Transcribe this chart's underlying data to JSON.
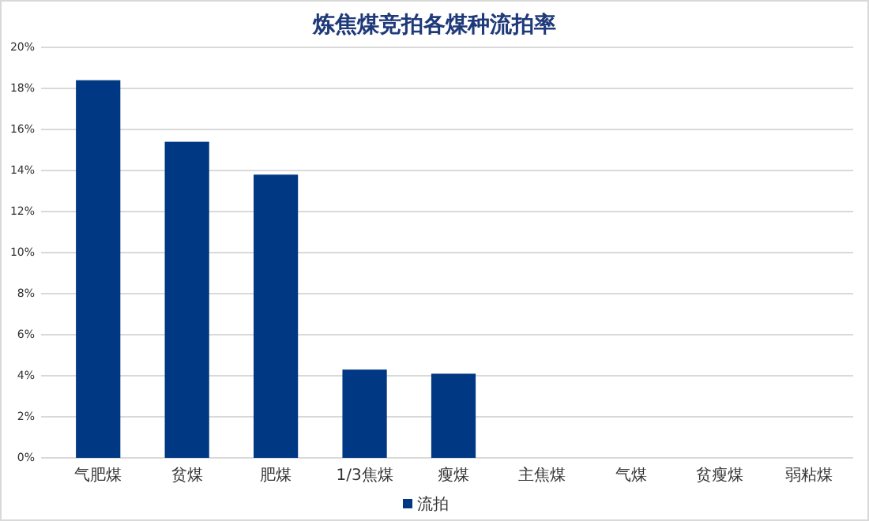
{
  "chart_data": {
    "type": "bar",
    "title": "炼焦煤竞拍各煤种流拍率",
    "categories": [
      "气肥煤",
      "贫煤",
      "肥煤",
      "1/3焦煤",
      "瘦煤",
      "主焦煤",
      "气煤",
      "贫瘦煤",
      "弱粘煤"
    ],
    "series": [
      {
        "name": "流拍",
        "color": "#003884",
        "values": [
          18.4,
          15.4,
          13.8,
          4.3,
          4.1,
          0,
          0,
          0,
          0
        ]
      }
    ],
    "ylim": [
      0,
      20
    ],
    "yticks": [
      {
        "value": 0,
        "label": "0%"
      },
      {
        "value": 2,
        "label": "2%"
      },
      {
        "value": 4,
        "label": "4%"
      },
      {
        "value": 6,
        "label": "6%"
      },
      {
        "value": 8,
        "label": "8%"
      },
      {
        "value": 10,
        "label": "10%"
      },
      {
        "value": 12,
        "label": "12%"
      },
      {
        "value": 14,
        "label": "14%"
      },
      {
        "value": 16,
        "label": "16%"
      },
      {
        "value": 18,
        "label": "18%"
      },
      {
        "value": 20,
        "label": "20%"
      }
    ],
    "grid": "y",
    "legend": "bottom"
  }
}
